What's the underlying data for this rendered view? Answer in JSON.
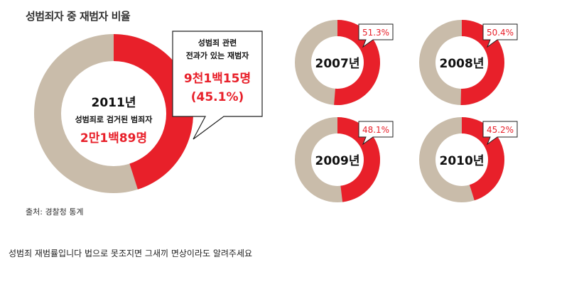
{
  "title": "성범죄자 중 재범자 비율",
  "source": "출처: 경찰청 통계",
  "caption": "성범죄 재범률입니다 법으로 못조지면 그새끼 면상이라도 알려주세요",
  "colors": {
    "recidivist": "#e8202a",
    "other": "#c9bcaa",
    "hole": "#ffffff",
    "callout_border": "#222222"
  },
  "chart_data": [
    {
      "type": "pie",
      "year_label": "2011년",
      "subtitle": "성범죄로 검거된 범죄자",
      "total_label": "2만1백89명",
      "percent": 45.1,
      "callout_lines": [
        "성범죄 관련",
        "전과가 있는 재범자"
      ],
      "count_label": "9천1백15명",
      "percent_label": "(45.1%)"
    },
    {
      "type": "pie",
      "year_label": "2007년",
      "percent": 51.3,
      "percent_label": "51.3%"
    },
    {
      "type": "pie",
      "year_label": "2008년",
      "percent": 50.4,
      "percent_label": "50.4%"
    },
    {
      "type": "pie",
      "year_label": "2009년",
      "percent": 48.1,
      "percent_label": "48.1%"
    },
    {
      "type": "pie",
      "year_label": "2010년",
      "percent": 45.2,
      "percent_label": "45.2%"
    }
  ]
}
